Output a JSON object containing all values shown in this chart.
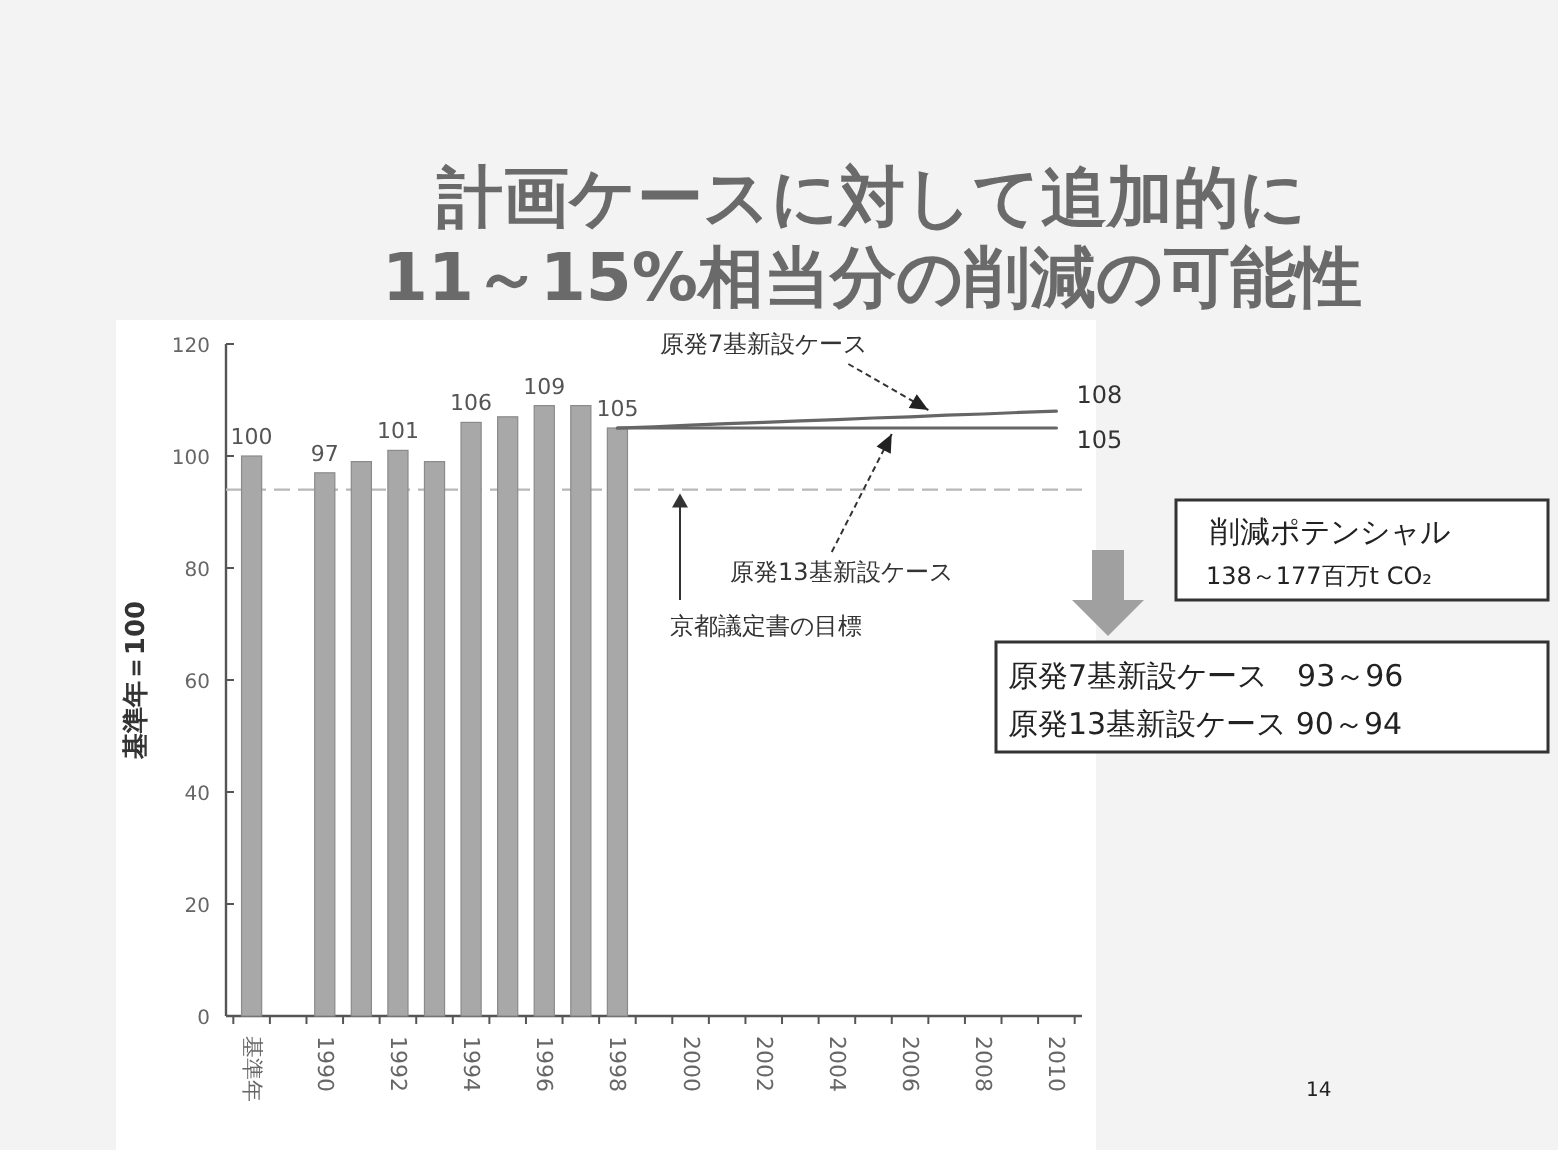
{
  "chart_data": {
    "type": "bar",
    "title": "計画ケースに対して追加的に\n11～15%相当分の削減の可能性",
    "ylabel": "基準年＝100",
    "categories": [
      "基準年",
      null,
      "1990",
      null,
      "1992",
      null,
      "1994",
      null,
      "1996",
      null,
      "1998",
      null,
      "2000",
      null,
      "2002",
      null,
      "2004",
      null,
      "2006",
      null,
      "2008",
      null,
      "2010"
    ],
    "series": [
      {
        "color": "#a8a8a8",
        "values": [
          100,
          null,
          97,
          99,
          101,
          99,
          106,
          107,
          109,
          109,
          105,
          null,
          null,
          null,
          null,
          null,
          null,
          null,
          null,
          null,
          null,
          null,
          null
        ],
        "value_labels": [
          "100",
          null,
          "97",
          null,
          "101",
          null,
          "106",
          null,
          "109",
          null,
          "105",
          null,
          null,
          null,
          null,
          null,
          null,
          null,
          null,
          null,
          null,
          null,
          null
        ]
      },
      {
        "type": "line",
        "name": "原発7基新設ケース",
        "color": "#666666",
        "values": [
          null,
          null,
          null,
          null,
          null,
          null,
          null,
          null,
          null,
          null,
          105,
          105.2,
          105.5,
          105.8,
          106,
          106.3,
          106.5,
          106.8,
          107,
          107.3,
          107.5,
          107.8,
          108
        ],
        "value_labels": [
          null,
          null,
          null,
          null,
          null,
          null,
          null,
          null,
          null,
          null,
          null,
          null,
          null,
          null,
          null,
          null,
          null,
          null,
          null,
          null,
          null,
          null,
          "108"
        ]
      },
      {
        "type": "line",
        "name": "原発13基新設ケース",
        "color": "#666666",
        "values": [
          null,
          null,
          null,
          null,
          null,
          null,
          null,
          null,
          null,
          null,
          105,
          105,
          105,
          105,
          105,
          105,
          105,
          105,
          105,
          105,
          105,
          105,
          105
        ],
        "value_labels": [
          null,
          null,
          null,
          null,
          null,
          null,
          null,
          null,
          null,
          null,
          null,
          null,
          null,
          null,
          null,
          null,
          null,
          null,
          null,
          null,
          null,
          null,
          "105"
        ]
      }
    ],
    "ylim": [
      0,
      120
    ],
    "yticks": [
      0,
      20,
      40,
      60,
      80,
      100,
      120
    ],
    "ref_lines": [
      {
        "axis": "y",
        "value": 94,
        "label": "京都議定書の目標",
        "color": "#b8b8b8",
        "line_style": "dashed"
      }
    ],
    "annotations": [
      "削減ポテンシャル",
      "138～177百万t CO₂",
      "原発7基新設ケース　93～96",
      "原発13基新設ケース 90～94",
      "14"
    ]
  }
}
